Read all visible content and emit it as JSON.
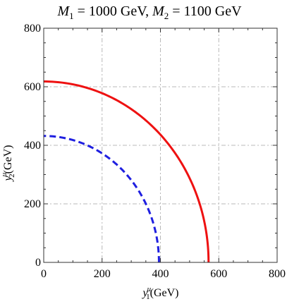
{
  "chart_data": {
    "type": "line",
    "title_parts": {
      "m1_sym": "M",
      "m1_sub": "1",
      "m1_val": " = 1000 GeV, ",
      "m2_sym": "M",
      "m2_sub": "2",
      "m2_val": " = 1100 GeV"
    },
    "xlabel": {
      "base": "y",
      "sub": "1",
      "sup": "u",
      "unit": "(GeV)"
    },
    "ylabel": {
      "base": "y",
      "sub": "2",
      "sup": "u",
      "unit": "(GeV)"
    },
    "xlim": [
      0,
      800
    ],
    "ylim": [
      0,
      800
    ],
    "xticks": [
      0,
      200,
      400,
      600,
      800
    ],
    "yticks": [
      0,
      200,
      400,
      600,
      800
    ],
    "x_tick_labels": [
      "0",
      "200",
      "400",
      "600",
      "800"
    ],
    "y_tick_labels": [
      "0",
      "200",
      "400",
      "600",
      "800"
    ],
    "grid": true,
    "series": [
      {
        "style": "solid",
        "color": "#ee1111",
        "rx": 565,
        "ry": 618
      },
      {
        "style": "dashed",
        "color": "#1f1fe0",
        "rx": 395,
        "ry": 432
      }
    ]
  }
}
